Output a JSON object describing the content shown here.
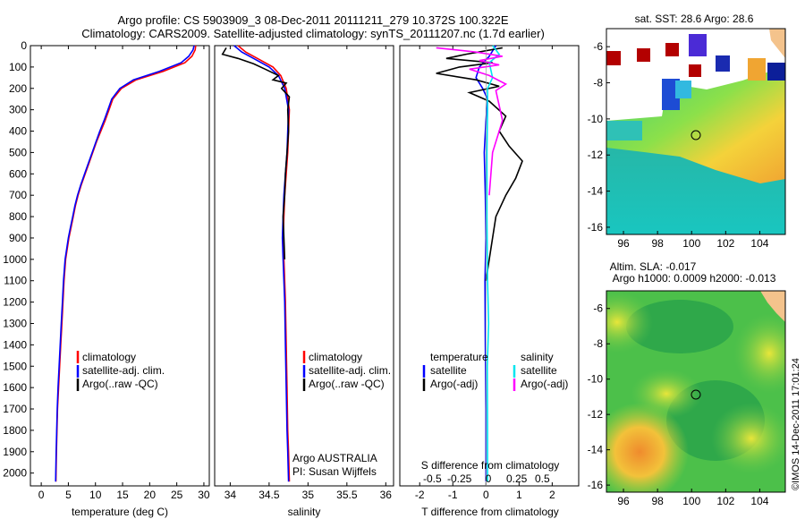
{
  "header": {
    "title_line1": "Argo profile: CS 5903909_3 08-Dec-2011 20111211_279 10.372S 100.322E",
    "title_line2": "Climatology: CARS2009. Satellite-adjusted climatology: synTS_20111207.nc (1.7d earlier)"
  },
  "colors": {
    "climatology": "#ff0000",
    "satellite": "#0000ff",
    "argo": "#000000",
    "sal_satellite": "#00e5ee",
    "sal_argo": "#ff00ff"
  },
  "footer": {
    "stamp": "©IMOS 14-Dec-2011 17:01:24"
  },
  "chart_data": [
    {
      "id": "temperature",
      "type": "line",
      "xlabel": "temperature (deg C)",
      "ylabel": "",
      "xlim": [
        -2,
        31
      ],
      "ylim": [
        2060,
        0
      ],
      "xticks": [
        0,
        5,
        10,
        15,
        20,
        25,
        30
      ],
      "yticks": [
        0,
        100,
        200,
        300,
        400,
        500,
        600,
        700,
        800,
        900,
        1000,
        1100,
        1200,
        1300,
        1400,
        1500,
        1600,
        1700,
        1800,
        1900,
        2000
      ],
      "legend": {
        "items": [
          "climatology",
          "satellite-adj. clim.",
          "Argo(..raw -QC)"
        ],
        "placement": "lower-center"
      },
      "series": [
        {
          "name": "climatology",
          "color": "#ff0000",
          "x": [
            28.5,
            28.4,
            27.8,
            26.5,
            22.5,
            17.5,
            14.8,
            13.2,
            12.5,
            11.8,
            11.0,
            10.2,
            9.5,
            8.8,
            8.1,
            7.4,
            6.8,
            6.3,
            5.9,
            5.5,
            5.1,
            4.8,
            4.5,
            4.2,
            4.0,
            3.8,
            3.6,
            3.4,
            3.2,
            3.0,
            2.9,
            2.8,
            2.7
          ],
          "y": [
            0,
            20,
            50,
            80,
            120,
            160,
            200,
            250,
            300,
            350,
            400,
            450,
            500,
            550,
            600,
            650,
            700,
            750,
            800,
            850,
            900,
            950,
            1000,
            1100,
            1200,
            1300,
            1400,
            1500,
            1600,
            1700,
            1800,
            1900,
            2040
          ]
        },
        {
          "name": "satellite-adj. clim.",
          "color": "#0000ff",
          "x": [
            28.2,
            28.0,
            27.2,
            25.8,
            21.8,
            17.0,
            14.5,
            13.0,
            12.3,
            11.6,
            10.8,
            10.1,
            9.4,
            8.7,
            8.0,
            7.3,
            6.7,
            6.2,
            5.8,
            5.4,
            5.0,
            4.7,
            4.4,
            4.1,
            3.9,
            3.7,
            3.5,
            3.3,
            3.1,
            2.95,
            2.85,
            2.75,
            2.65
          ],
          "y": [
            0,
            20,
            50,
            80,
            120,
            160,
            200,
            250,
            300,
            350,
            400,
            450,
            500,
            550,
            600,
            650,
            700,
            750,
            800,
            850,
            900,
            950,
            1000,
            1100,
            1200,
            1300,
            1400,
            1500,
            1600,
            1700,
            1800,
            1900,
            2040
          ]
        }
      ]
    },
    {
      "id": "salinity",
      "type": "line",
      "xlabel": "salinity",
      "xlim": [
        33.8,
        36.1
      ],
      "ylim": [
        2060,
        0
      ],
      "xticks": [
        34,
        34.5,
        35,
        35.5,
        36
      ],
      "xtick_labels": [
        "34",
        "34.5",
        "35",
        "35.5",
        "36"
      ],
      "legend": {
        "items": [
          "climatology",
          "satellite-adj. clim.",
          "Argo(..raw -QC)"
        ],
        "placement": "lower-right"
      },
      "annotations": [
        "Argo AUSTRALIA",
        "PI: Susan Wijffels"
      ],
      "series": [
        {
          "name": "climatology",
          "color": "#ff0000",
          "x": [
            34.1,
            34.2,
            34.35,
            34.55,
            34.65,
            34.72,
            34.76,
            34.75,
            34.74,
            34.72,
            34.7,
            34.69,
            34.68,
            34.69,
            34.7,
            34.71,
            34.72,
            34.73,
            34.74,
            34.75,
            34.76
          ],
          "y": [
            0,
            30,
            60,
            100,
            140,
            200,
            300,
            400,
            500,
            600,
            700,
            800,
            900,
            1000,
            1100,
            1200,
            1400,
            1600,
            1800,
            1900,
            2040
          ]
        },
        {
          "name": "satellite-adj. clim.",
          "color": "#0000ff",
          "x": [
            34.05,
            34.15,
            34.3,
            34.5,
            34.62,
            34.7,
            34.75,
            34.74,
            34.73,
            34.71,
            34.69,
            34.68,
            34.67,
            34.68,
            34.69,
            34.7,
            34.71,
            34.72,
            34.73,
            34.74,
            34.75
          ],
          "y": [
            0,
            30,
            60,
            100,
            140,
            200,
            300,
            400,
            500,
            600,
            700,
            800,
            900,
            1000,
            1100,
            1200,
            1400,
            1600,
            1800,
            1900,
            2040
          ]
        },
        {
          "name": "Argo(..raw -QC)",
          "color": "#000000",
          "x": [
            33.95,
            33.9,
            34.1,
            34.3,
            34.45,
            34.62,
            34.55,
            34.72,
            34.66,
            34.76,
            34.74,
            34.75,
            34.73,
            34.71,
            34.7,
            34.68,
            34.69,
            34.7
          ],
          "y": [
            10,
            40,
            60,
            85,
            110,
            140,
            160,
            175,
            200,
            240,
            300,
            400,
            500,
            600,
            700,
            800,
            900,
            1000
          ]
        }
      ]
    },
    {
      "id": "difference",
      "type": "line",
      "xlabel": "T difference from climatology",
      "xlabel_top": "S difference from climatology",
      "xlim": [
        -2.6,
        2.8
      ],
      "ylim": [
        2060,
        0
      ],
      "xticks": [
        -2,
        -1,
        0,
        1,
        2
      ],
      "s_ticks": [
        "-0.5",
        "-0.25",
        "0",
        "0.25",
        "0.5"
      ],
      "legend": {
        "groups": [
          "temperature",
          "salinity"
        ],
        "items": [
          "satellite",
          "Argo(-adj)",
          "satellite",
          "Argo(-adj)"
        ],
        "placement": "lower-center"
      },
      "series": [
        {
          "name": "T satellite",
          "color": "#0000ff",
          "x": [
            0.3,
            0.1,
            -0.2,
            -0.3,
            -0.1,
            0.05,
            0.0,
            -0.05,
            -0.02,
            0.0,
            -0.03,
            -0.02,
            0.0,
            0.0
          ],
          "y": [
            0,
            50,
            100,
            150,
            200,
            250,
            350,
            500,
            700,
            900,
            1100,
            1400,
            1700,
            2040
          ]
        },
        {
          "name": "T Argo(-adj)",
          "color": "#000000",
          "x": [
            0.5,
            -0.6,
            -1.2,
            0.2,
            -0.8,
            -1.5,
            -0.3,
            0.4,
            -0.5,
            0.1,
            0.6,
            0.4,
            0.7,
            1.1,
            0.9,
            0.6,
            0.3,
            0.1,
            0.0
          ],
          "y": [
            10,
            40,
            60,
            80,
            100,
            130,
            160,
            190,
            220,
            260,
            330,
            400,
            470,
            540,
            620,
            700,
            800,
            1000,
            1100
          ]
        },
        {
          "name": "S satellite",
          "color": "#00e5ee",
          "x": [
            0.2,
            0.4,
            0.1,
            0.2,
            0.05,
            0.05,
            0.03,
            0.03,
            0.05,
            0.08,
            0.04,
            0.05,
            0.05
          ],
          "y": [
            0,
            40,
            80,
            150,
            200,
            300,
            500,
            800,
            1100,
            1300,
            1500,
            1800,
            2040
          ]
        },
        {
          "name": "S Argo(-adj)",
          "color": "#ff00ff",
          "x": [
            -1.5,
            -0.3,
            0.5,
            -0.2,
            0.4,
            -0.5,
            0.1,
            0.6,
            0.3,
            0.4,
            0.5,
            0.2,
            0.1
          ],
          "y": [
            10,
            30,
            50,
            70,
            90,
            110,
            140,
            180,
            210,
            280,
            350,
            500,
            700
          ]
        }
      ]
    },
    {
      "id": "sst_map",
      "type": "heatmap",
      "title": "sat. SST: 28.6 Argo: 28.6",
      "xlim": [
        95,
        105.5
      ],
      "ylim": [
        -16.4,
        -5
      ],
      "xticks": [
        96,
        98,
        100,
        102,
        104
      ],
      "yticks": [
        -6,
        -8,
        -10,
        -12,
        -14,
        -16
      ],
      "argo_position": {
        "lon": 100.322,
        "lat": -10.372
      }
    },
    {
      "id": "sla_map",
      "type": "heatmap",
      "title_line1": "Altim. SLA: -0.017",
      "title_line2": "Argo h1000: 0.0009 h2000: -0.013",
      "xlim": [
        95,
        105.5
      ],
      "ylim": [
        -16.4,
        -5
      ],
      "xticks": [
        96,
        98,
        100,
        102,
        104
      ],
      "yticks": [
        -6,
        -8,
        -10,
        -12,
        -14,
        -16
      ],
      "argo_position": {
        "lon": 100.322,
        "lat": -10.372
      }
    }
  ]
}
